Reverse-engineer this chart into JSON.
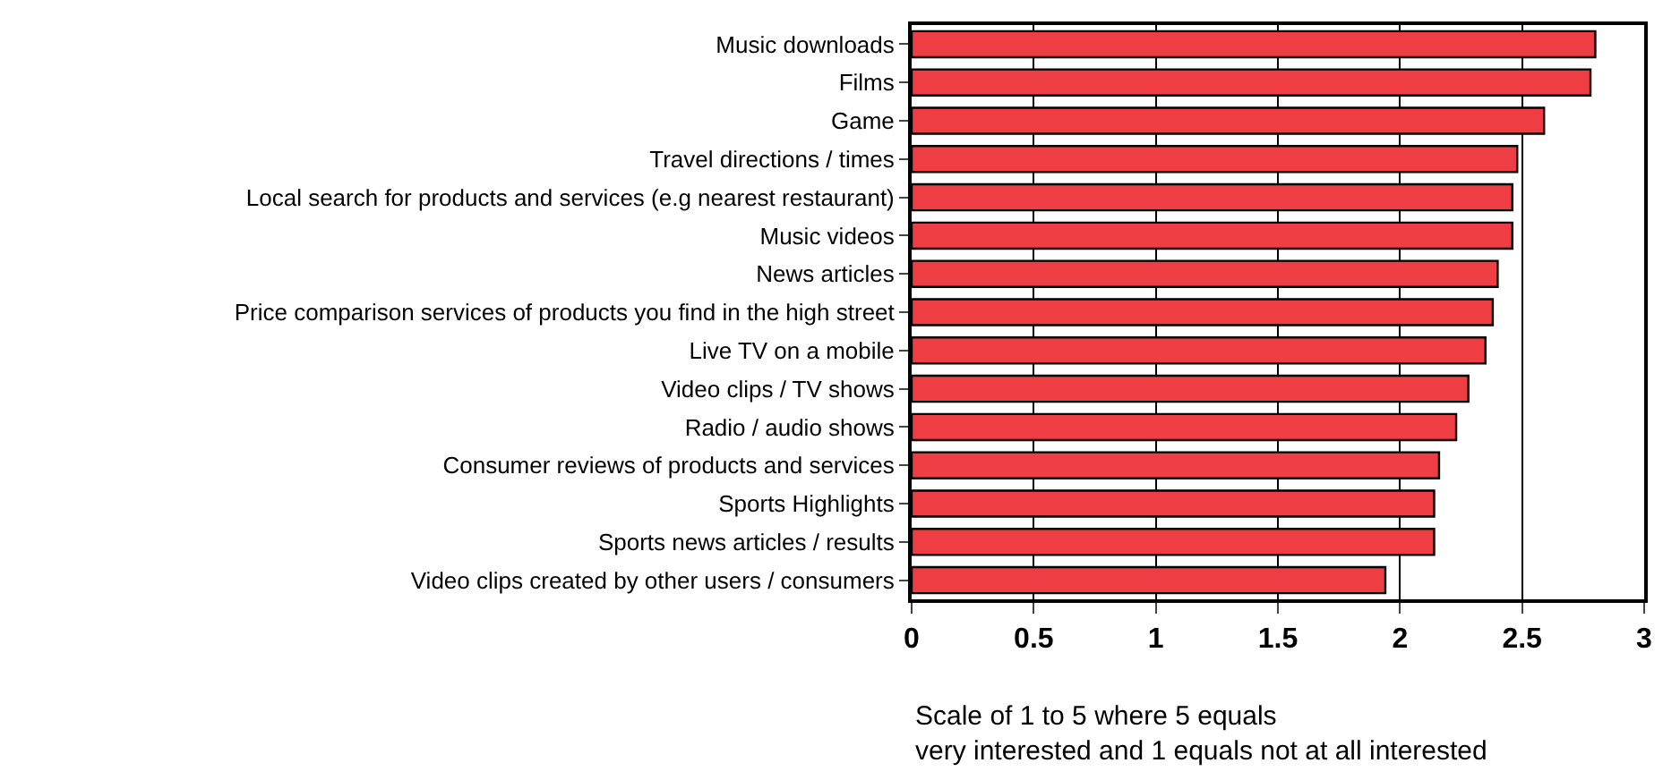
{
  "chart_data": {
    "type": "bar",
    "orientation": "horizontal",
    "categories": [
      "Music downloads",
      "Films",
      "Game",
      "Travel directions / times",
      "Local search for products and services (e.g nearest restaurant)",
      "Music videos",
      "News articles",
      "Price comparison services of products you find in the high street",
      "Live TV on a mobile",
      "Video clips / TV shows",
      "Radio / audio shows",
      "Consumer reviews of products and services",
      "Sports Highlights",
      "Sports news articles / results",
      "Video clips created by other users / consumers"
    ],
    "values": [
      2.8,
      2.78,
      2.59,
      2.48,
      2.46,
      2.46,
      2.4,
      2.38,
      2.35,
      2.28,
      2.23,
      2.16,
      2.14,
      2.14,
      1.94
    ],
    "color": "#ee3e44",
    "xlim": [
      0,
      3
    ],
    "xticks": [
      0,
      0.5,
      1,
      1.5,
      2,
      2.5,
      3
    ],
    "grid": "x",
    "annotations": [
      "Scale of 1 to 5 where 5 equals very interested and 1 equals not at all interested"
    ]
  }
}
